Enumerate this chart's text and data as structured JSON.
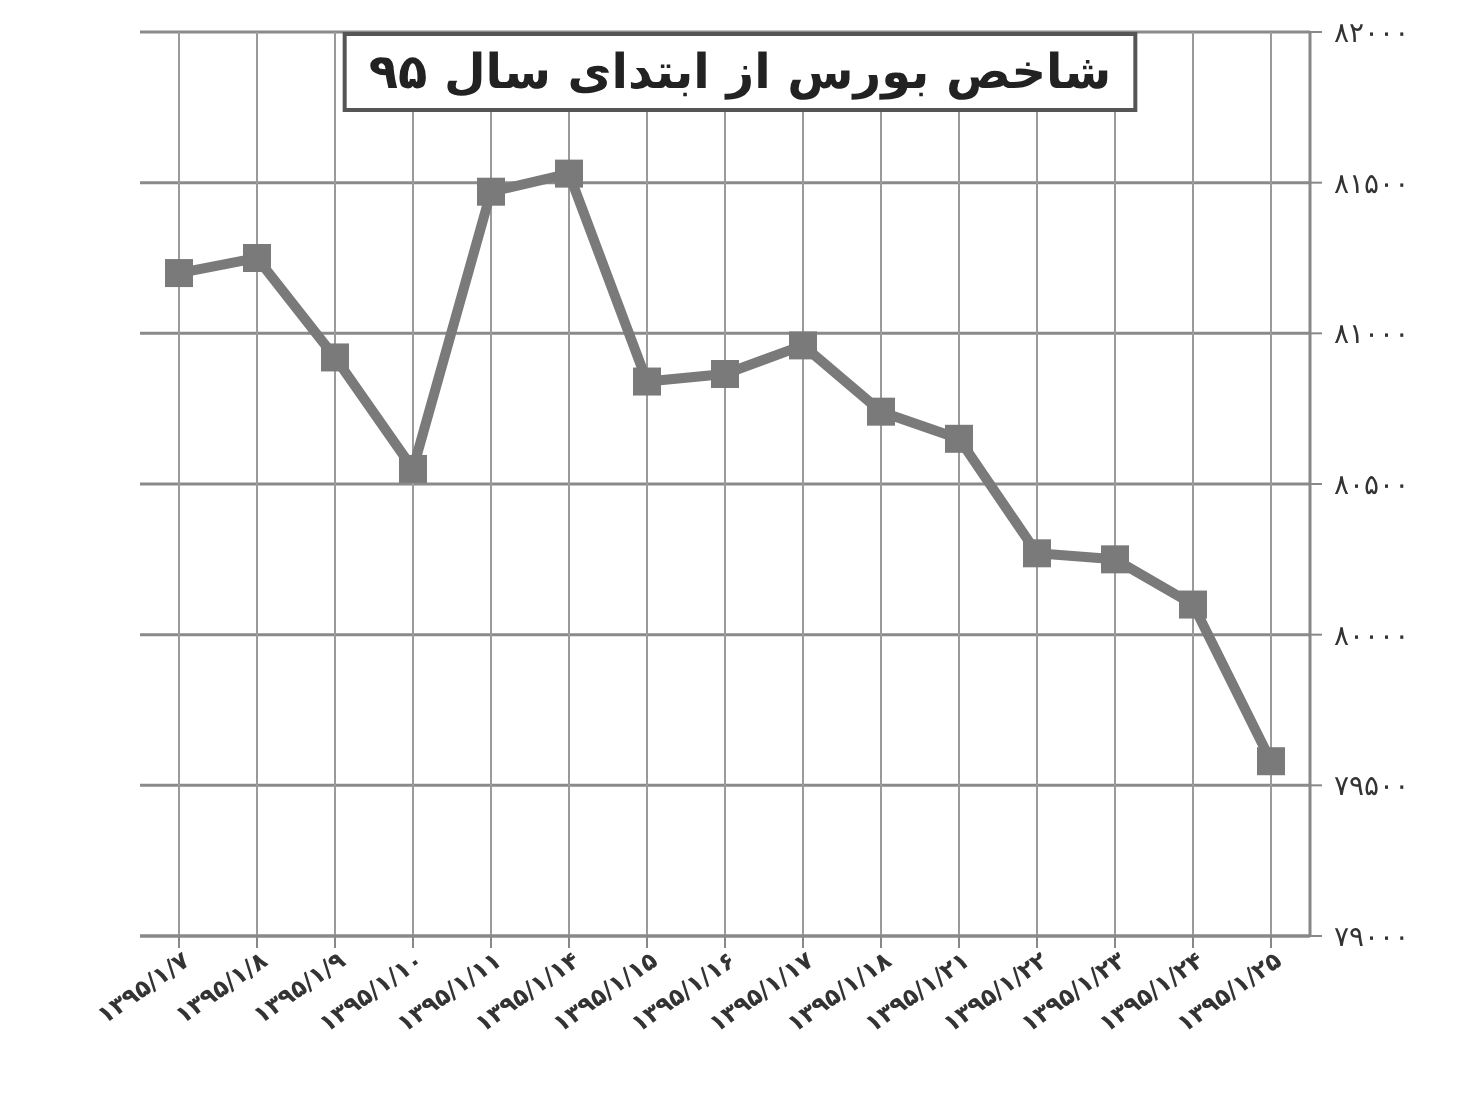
{
  "chart_data": {
    "type": "line",
    "title": "شاخص بورس از ابتدای سال ۹۵",
    "categories": [
      "۱۳۹۵/۱/۷",
      "۱۳۹۵/۱/۸",
      "۱۳۹۵/۱/۹",
      "۱۳۹۵/۱/۱۰",
      "۱۳۹۵/۱/۱۱",
      "۱۳۹۵/۱/۱۴",
      "۱۳۹۵/۱/۱۵",
      "۱۳۹۵/۱/۱۶",
      "۱۳۹۵/۱/۱۷",
      "۱۳۹۵/۱/۱۸",
      "۱۳۹۵/۱/۲۱",
      "۱۳۹۵/۱/۲۲",
      "۱۳۹۵/۱/۲۳",
      "۱۳۹۵/۱/۲۴",
      "۱۳۹۵/۱/۲۵"
    ],
    "series": [
      {
        "color": "#7a7a7a",
        "values": [
          81200,
          81250,
          80920,
          80550,
          81470,
          81530,
          80840,
          80865,
          80960,
          80740,
          80650,
          80270,
          80250,
          80100,
          79580
        ]
      }
    ],
    "ylim": [
      79000,
      82000
    ],
    "yticks": [
      {
        "value": 79000,
        "label": "۷۹۰۰۰"
      },
      {
        "value": 79500,
        "label": "۷۹۵۰۰"
      },
      {
        "value": 80000,
        "label": "۸۰۰۰۰"
      },
      {
        "value": 80500,
        "label": "۸۰۵۰۰"
      },
      {
        "value": 81000,
        "label": "۸۱۰۰۰"
      },
      {
        "value": 81500,
        "label": "۸۱۵۰۰"
      },
      {
        "value": 82000,
        "label": "۸۲۰۰۰"
      }
    ],
    "grid": true,
    "marker": "square",
    "line_style": "solid"
  }
}
